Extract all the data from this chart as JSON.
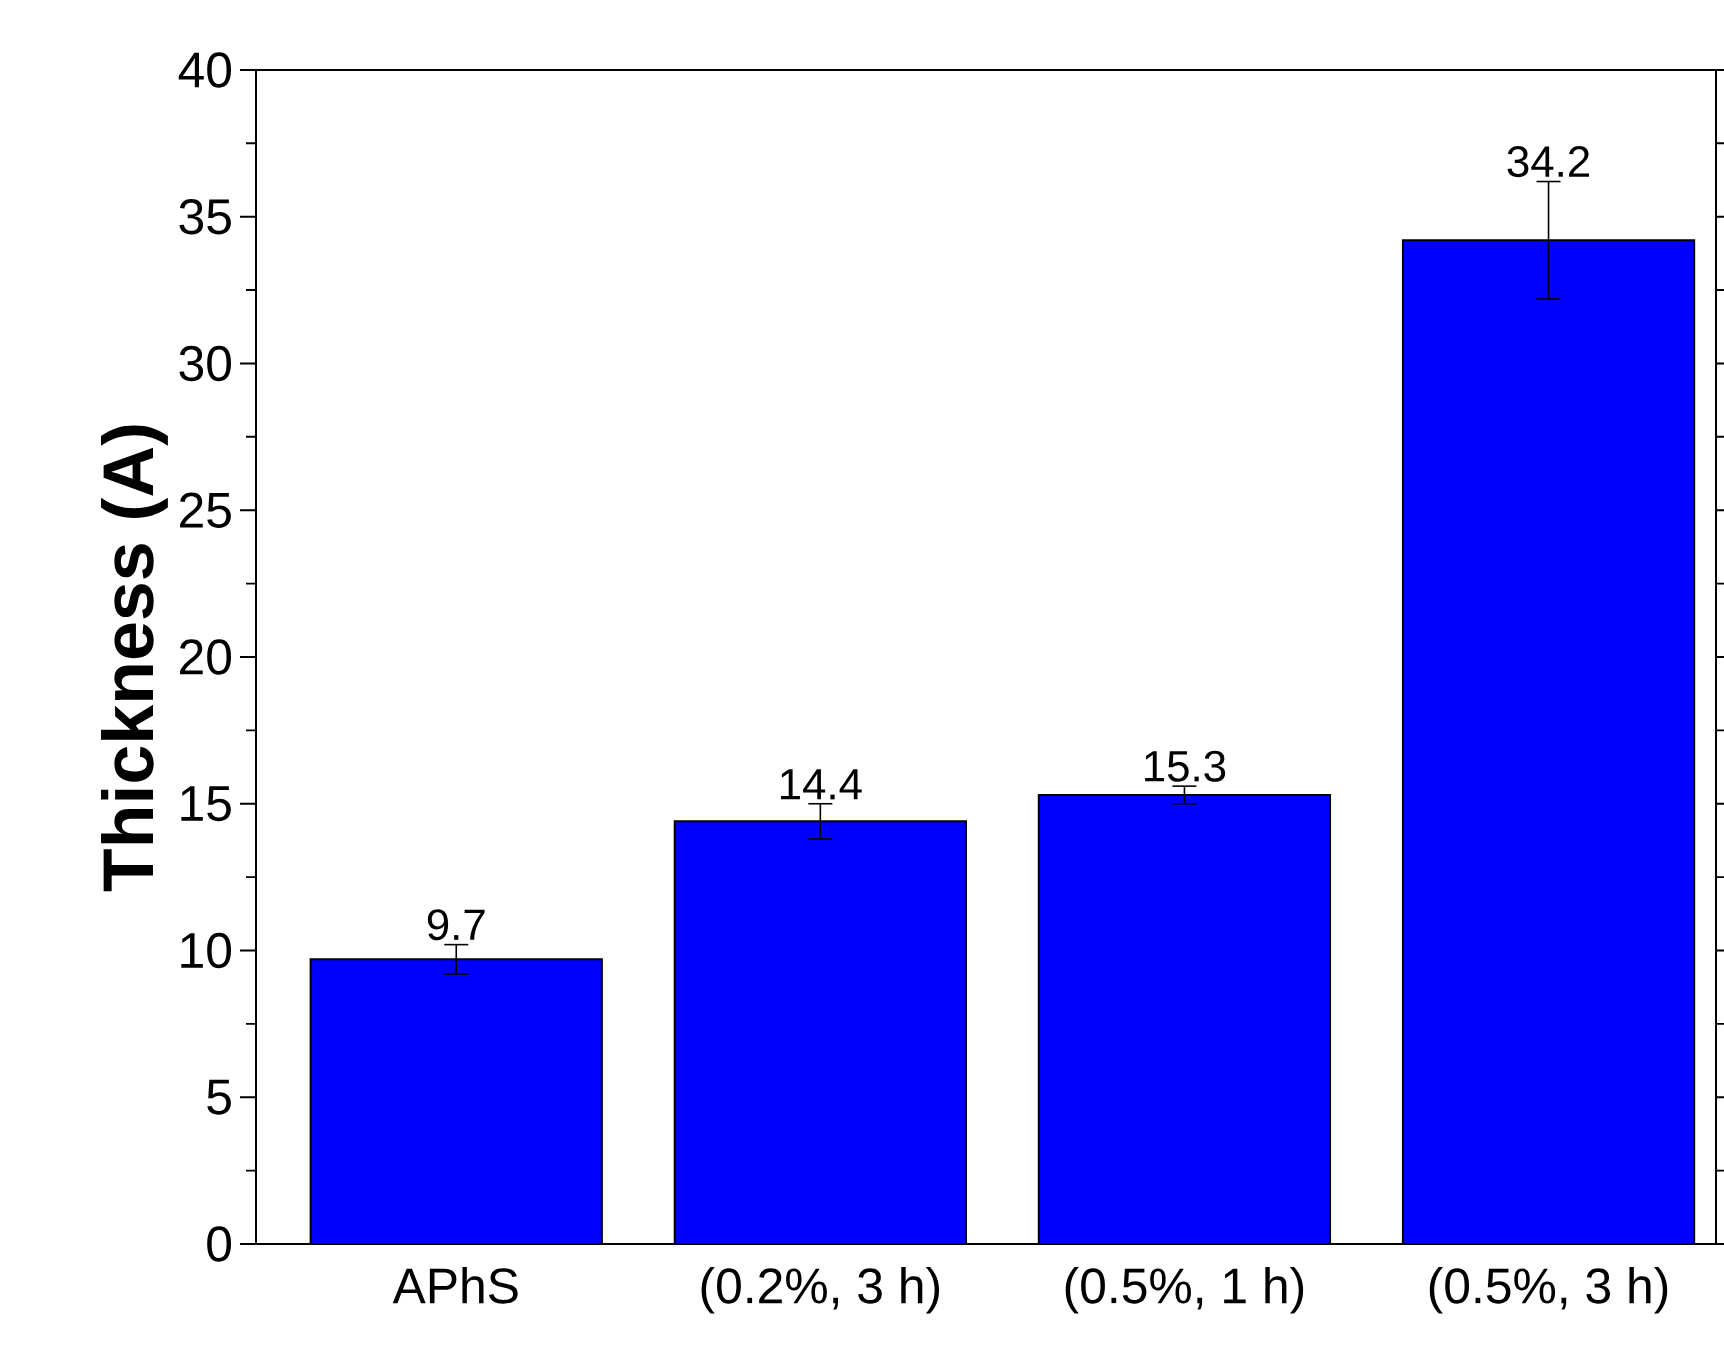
{
  "chart_data": {
    "type": "bar",
    "ylabel": "Thickness (A)",
    "categories": [
      "APhS",
      "(0.2%, 3 h)",
      "(0.5%, 1 h)",
      "(0.5%, 3 h)"
    ],
    "values": [
      9.7,
      14.4,
      15.3,
      34.2
    ],
    "errors": [
      0.5,
      0.6,
      0.3,
      2.0
    ],
    "color": "#0000ff",
    "ylim": [
      0,
      40
    ],
    "yticks": [
      0,
      5,
      10,
      15,
      20,
      25,
      30,
      35,
      40
    ],
    "data_labels": true
  }
}
